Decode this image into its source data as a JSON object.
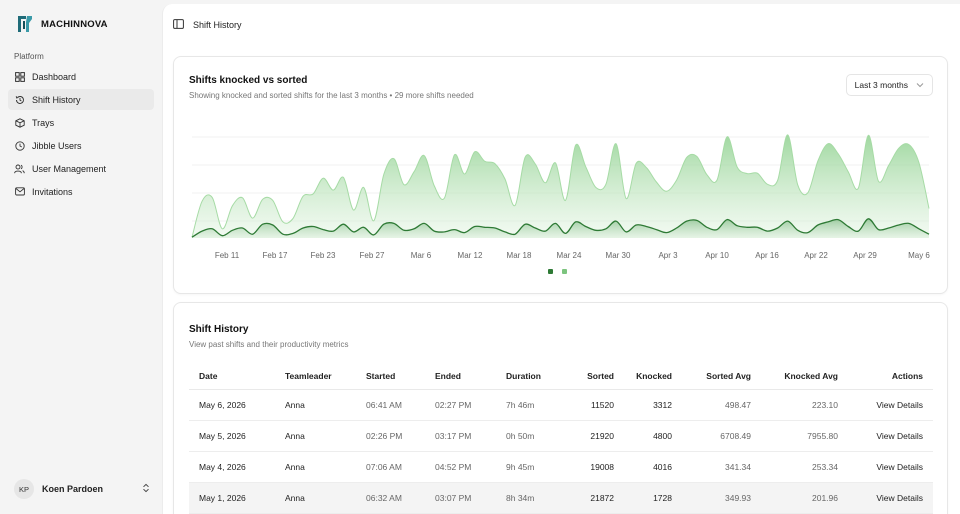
{
  "brand": {
    "name": "MACHINNOVA"
  },
  "sidebar": {
    "section": "Platform",
    "items": [
      {
        "label": "Dashboard",
        "icon": "dashboard-icon"
      },
      {
        "label": "Shift History",
        "icon": "history-icon",
        "active": true
      },
      {
        "label": "Trays",
        "icon": "box-icon"
      },
      {
        "label": "Jibble Users",
        "icon": "clock-icon"
      },
      {
        "label": "User Management",
        "icon": "users-icon"
      },
      {
        "label": "Invitations",
        "icon": "mail-icon"
      }
    ]
  },
  "user": {
    "initials": "KP",
    "name": "Koen Pardoen"
  },
  "topbar": {
    "title": "Shift History"
  },
  "chart_card": {
    "title": "Shifts knocked vs sorted",
    "subtitle": "Showing knocked and sorted shifts for the last 3 months • 29 more shifts needed",
    "range_label": "Last 3 months"
  },
  "colors": {
    "sorted": "#9cd59a",
    "knocked": "#2e7a35",
    "accent": "#3f9a44"
  },
  "chart_data": {
    "type": "area",
    "title": "Shifts knocked vs sorted",
    "xlabel": "",
    "ylabel": "",
    "grid": true,
    "legend": "bottom",
    "tick_labels": [
      "Feb 11",
      "Feb 17",
      "Feb 23",
      "Feb 27",
      "Mar 6",
      "Mar 12",
      "Mar 18",
      "Mar 24",
      "Mar 30",
      "Apr 3",
      "Apr 10",
      "Apr 16",
      "Apr 22",
      "Apr 29",
      "May 6"
    ],
    "series": [
      {
        "name": "",
        "color": "#9cd59a",
        "values": [
          200,
          9600,
          10600,
          2400,
          8400,
          10500,
          5200,
          10100,
          9800,
          4200,
          5100,
          10900,
          11500,
          15600,
          12500,
          15800,
          7300,
          13200,
          4500,
          16600,
          20700,
          13900,
          17300,
          21500,
          13600,
          10400,
          21700,
          16700,
          22500,
          20000,
          19400,
          15400,
          8500,
          21100,
          19300,
          14400,
          19600,
          9800,
          24200,
          18600,
          13200,
          14000,
          24600,
          10300,
          19500,
          18400,
          14600,
          12200,
          15100,
          21000,
          21300,
          16500,
          15100,
          26400,
          18500,
          16800,
          16900,
          14000,
          15000,
          26900,
          13800,
          11800,
          20100,
          24600,
          22000,
          17300,
          13000,
          26800,
          14800,
          18900,
          23400,
          24400,
          19700,
          7700
        ]
      },
      {
        "name": "",
        "color": "#2e7a35",
        "values": [
          200,
          1800,
          2400,
          600,
          2000,
          2600,
          1000,
          3600,
          3400,
          1000,
          1200,
          2600,
          3000,
          2200,
          1800,
          3600,
          1600,
          2800,
          800,
          3600,
          3800,
          2000,
          2400,
          3800,
          1800,
          1600,
          2200,
          1400,
          3000,
          2800,
          2600,
          1600,
          1000,
          3600,
          2600,
          1800,
          3800,
          1200,
          4200,
          3000,
          2000,
          2400,
          4400,
          1600,
          3400,
          3000,
          2200,
          1400,
          2600,
          4400,
          4600,
          2800,
          2200,
          4800,
          3200,
          2800,
          2800,
          1800,
          2600,
          4400,
          2000,
          1400,
          3400,
          4200,
          4800,
          3000,
          1800,
          5000,
          2200,
          2600,
          3400,
          3800,
          2400,
          1000
        ]
      }
    ]
  },
  "history": {
    "title": "Shift History",
    "subtitle": "View past shifts and their productivity metrics",
    "columns": [
      "Date",
      "Teamleader",
      "Started",
      "Ended",
      "Duration",
      "Sorted",
      "Knocked",
      "Sorted Avg",
      "Knocked Avg",
      "Actions"
    ],
    "rows": [
      [
        "May 6, 2026",
        "Anna",
        "06:41 AM",
        "02:27 PM",
        "7h 46m",
        "11520",
        "3312",
        "498.47",
        "223.10",
        "View Details"
      ],
      [
        "May 5, 2026",
        "Anna",
        "02:26 PM",
        "03:17 PM",
        "0h 50m",
        "21920",
        "4800",
        "6708.49",
        "7955.80",
        "View Details"
      ],
      [
        "May 4, 2026",
        "Anna",
        "07:06 AM",
        "04:52 PM",
        "9h 45m",
        "19008",
        "4016",
        "341.34",
        "253.34",
        "View Details"
      ],
      [
        "May 1, 2026",
        "Anna",
        "06:32 AM",
        "03:07 PM",
        "8h 34m",
        "21872",
        "1728",
        "349.93",
        "201.96",
        "View Details"
      ]
    ]
  }
}
